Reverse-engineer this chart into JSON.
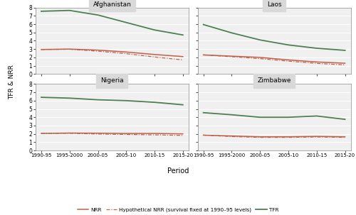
{
  "periods": [
    "1990-95",
    "1995-2000",
    "2000-05",
    "2005-10",
    "2010-15",
    "2015-20"
  ],
  "x": [
    0,
    1,
    2,
    3,
    4,
    5
  ],
  "countries": [
    "Afghanistan",
    "Laos",
    "Nigeria",
    "Zimbabwe"
  ],
  "tfr": {
    "Afghanistan": [
      7.55,
      7.65,
      7.1,
      6.2,
      5.3,
      4.7
    ],
    "Laos": [
      5.95,
      4.95,
      4.1,
      3.5,
      3.1,
      2.85
    ],
    "Nigeria": [
      6.4,
      6.3,
      6.1,
      6.0,
      5.8,
      5.5
    ],
    "Zimbabwe": [
      4.55,
      4.3,
      4.0,
      4.0,
      4.15,
      3.75
    ]
  },
  "nrr": {
    "Afghanistan": [
      2.95,
      3.0,
      2.88,
      2.65,
      2.35,
      2.1
    ],
    "Laos": [
      2.3,
      2.15,
      2.0,
      1.7,
      1.45,
      1.3
    ],
    "Nigeria": [
      2.05,
      2.1,
      2.08,
      2.05,
      2.05,
      2.0
    ],
    "Zimbabwe": [
      1.85,
      1.75,
      1.65,
      1.65,
      1.7,
      1.65
    ]
  },
  "hyp_nrr": {
    "Afghanistan": [
      2.95,
      2.98,
      2.75,
      2.45,
      2.05,
      1.7
    ],
    "Laos": [
      2.3,
      2.08,
      1.85,
      1.55,
      1.28,
      1.1
    ],
    "Nigeria": [
      2.05,
      2.07,
      1.98,
      1.93,
      1.88,
      1.82
    ],
    "Zimbabwe": [
      1.85,
      1.68,
      1.58,
      1.58,
      1.63,
      1.58
    ]
  },
  "tfr_color": "#4e7f52",
  "nrr_color": "#c0614a",
  "hyp_nrr_color": "#c0614a",
  "background_color": "#d9d9d9",
  "plot_bg": "#f0f0f0",
  "inner_bg": "#f0f0f0",
  "ylim": [
    0,
    8
  ],
  "yticks": [
    0,
    1,
    2,
    3,
    4,
    5,
    6,
    7,
    8
  ],
  "ylabel": "TFR & NRR",
  "xlabel": "Period",
  "legend_nrr": "NRR",
  "legend_hyp": "Hypothetical NRR (survival fixed at 1990–95 levels)",
  "legend_tfr": "TFR"
}
